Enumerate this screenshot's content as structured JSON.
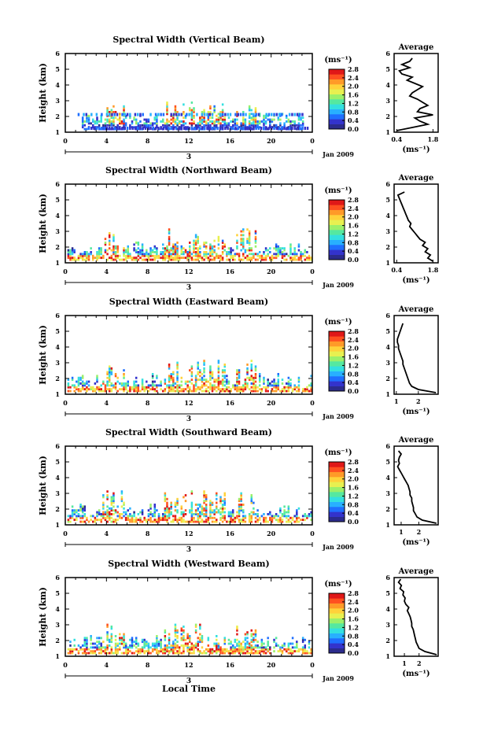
{
  "figure": {
    "xlabel": "Local Time",
    "ylabel": "Height (km)",
    "unit_label": "(ms⁻¹)",
    "avg_title": "Average",
    "date_label": "Jan 2009",
    "day_label": "3"
  },
  "colorbar": {
    "ticks": [
      "2.8",
      "2.4",
      "2.0",
      "1.6",
      "1.2",
      "0.8",
      "0.4",
      "0.0"
    ],
    "colors": [
      "#2b2b8c",
      "#3333cc",
      "#1f6fff",
      "#28b0ff",
      "#33e0e0",
      "#55e8a0",
      "#9cf06a",
      "#e8f050",
      "#ffd23a",
      "#ff9a28",
      "#ff5020",
      "#e01818"
    ]
  },
  "chart_data": [
    {
      "type": "heatmap",
      "title": "Spectral Width (Vertical Beam)",
      "x_ticks": [
        "0",
        "4",
        "8",
        "12",
        "16",
        "20",
        "0"
      ],
      "xlim": [
        0,
        24
      ],
      "y_ticks": [
        "1",
        "2",
        "3",
        "4",
        "5",
        "6"
      ],
      "ylim": [
        1,
        6
      ],
      "clim": [
        0.0,
        2.8
      ],
      "profile": {
        "title": "Average",
        "xlabel": "(ms⁻¹)",
        "x_ticks": [
          "0.4",
          "1.8"
        ],
        "xlim": [
          0.3,
          2.0
        ],
        "height": [
          1.1,
          1.3,
          1.5,
          1.7,
          1.9,
          2.1,
          2.3,
          2.5,
          2.7,
          2.9,
          3.1,
          3.3,
          3.5,
          3.7,
          3.9,
          4.1,
          4.3,
          4.5,
          4.7,
          4.9,
          5.1,
          5.3,
          5.5,
          5.7
        ],
        "width": [
          0.4,
          1.0,
          1.6,
          1.3,
          1.1,
          1.8,
          1.2,
          1.3,
          1.6,
          1.4,
          1.2,
          0.9,
          1.0,
          1.2,
          1.4,
          1.1,
          0.8,
          1.0,
          0.6,
          0.5,
          0.9,
          0.6,
          0.9,
          1.0
        ]
      }
    },
    {
      "type": "heatmap",
      "title": "Spectral Width (Northward Beam)",
      "x_ticks": [
        "0",
        "4",
        "8",
        "12",
        "16",
        "20",
        "0"
      ],
      "xlim": [
        0,
        24
      ],
      "y_ticks": [
        "1",
        "2",
        "3",
        "4",
        "5",
        "6"
      ],
      "ylim": [
        1,
        6
      ],
      "clim": [
        0.0,
        2.8
      ],
      "profile": {
        "title": "Average",
        "xlabel": "(ms⁻¹)",
        "x_ticks": [
          "0.4",
          "1.8"
        ],
        "xlim": [
          0.3,
          2.0
        ],
        "height": [
          1.1,
          1.3,
          1.5,
          1.7,
          1.9,
          2.1,
          2.3,
          2.5,
          2.7,
          2.9,
          3.1,
          3.3,
          3.5,
          3.7,
          3.9,
          4.1,
          4.3,
          4.5,
          4.7,
          4.9,
          5.1,
          5.3,
          5.5
        ],
        "width": [
          1.8,
          1.6,
          1.7,
          1.5,
          1.6,
          1.4,
          1.5,
          1.3,
          1.2,
          1.1,
          1.0,
          0.9,
          0.95,
          0.85,
          0.8,
          0.75,
          0.7,
          0.65,
          0.6,
          0.55,
          0.5,
          0.45,
          0.7
        ]
      }
    },
    {
      "type": "heatmap",
      "title": "Spectral Width (Eastward Beam)",
      "x_ticks": [
        "0",
        "4",
        "8",
        "12",
        "16",
        "20",
        "0"
      ],
      "xlim": [
        0,
        24
      ],
      "y_ticks": [
        "1",
        "2",
        "3",
        "4",
        "5",
        "6"
      ],
      "ylim": [
        1,
        6
      ],
      "clim": [
        0.0,
        2.8
      ],
      "profile": {
        "title": "Average",
        "xlabel": "(ms⁻¹)",
        "x_ticks": [
          "1",
          "2"
        ],
        "xlim": [
          0.9,
          2.9
        ],
        "height": [
          1.1,
          1.3,
          1.5,
          1.7,
          1.9,
          2.1,
          2.3,
          2.5,
          2.7,
          2.9,
          3.1,
          3.3,
          3.5,
          3.7,
          3.9,
          4.1,
          4.3,
          4.5,
          4.7,
          4.9,
          5.1,
          5.3,
          5.5
        ],
        "width": [
          2.8,
          2.0,
          1.7,
          1.6,
          1.55,
          1.5,
          1.45,
          1.4,
          1.35,
          1.3,
          1.3,
          1.25,
          1.2,
          1.15,
          1.1,
          1.1,
          1.05,
          1.05,
          1.1,
          1.15,
          1.2,
          1.25,
          1.3
        ]
      }
    },
    {
      "type": "heatmap",
      "title": "Spectral Width (Southward Beam)",
      "x_ticks": [
        "0",
        "4",
        "8",
        "12",
        "16",
        "20",
        "0"
      ],
      "xlim": [
        0,
        24
      ],
      "y_ticks": [
        "1",
        "2",
        "3",
        "4",
        "5",
        "6"
      ],
      "ylim": [
        1,
        6
      ],
      "clim": [
        0.0,
        2.8
      ],
      "profile": {
        "title": "Average",
        "xlabel": "(ms⁻¹)",
        "x_ticks": [
          "1",
          "2"
        ],
        "xlim": [
          0.6,
          3.1
        ],
        "height": [
          1.1,
          1.3,
          1.5,
          1.7,
          1.9,
          2.1,
          2.3,
          2.5,
          2.7,
          2.9,
          3.1,
          3.3,
          3.5,
          3.7,
          3.9,
          4.1,
          4.3,
          4.5,
          4.7,
          4.9,
          5.1,
          5.3,
          5.5,
          5.7
        ],
        "width": [
          3.0,
          2.2,
          1.9,
          1.8,
          1.7,
          1.7,
          1.65,
          1.6,
          1.6,
          1.5,
          1.5,
          1.45,
          1.4,
          1.3,
          1.2,
          1.1,
          1.0,
          0.9,
          0.8,
          0.9,
          0.85,
          0.9,
          1.0,
          0.85
        ]
      }
    },
    {
      "type": "heatmap",
      "title": "Spectral Width (Westward Beam)",
      "x_ticks": [
        "0",
        "4",
        "8",
        "12",
        "16",
        "20",
        "0"
      ],
      "xlim": [
        0,
        24
      ],
      "y_ticks": [
        "1",
        "2",
        "3",
        "4",
        "5",
        "6"
      ],
      "ylim": [
        1,
        6
      ],
      "clim": [
        0.0,
        2.8
      ],
      "profile": {
        "title": "Average",
        "xlabel": "(ms⁻¹)",
        "x_ticks": [
          "1",
          "2"
        ],
        "xlim": [
          0.3,
          3.3
        ],
        "height": [
          1.1,
          1.3,
          1.5,
          1.7,
          1.9,
          2.1,
          2.3,
          2.5,
          2.7,
          2.9,
          3.1,
          3.3,
          3.5,
          3.7,
          3.9,
          4.1,
          4.3,
          4.5,
          4.7,
          4.9,
          5.1,
          5.3,
          5.5,
          5.7,
          5.9
        ],
        "width": [
          3.2,
          2.4,
          2.0,
          1.9,
          1.8,
          1.75,
          1.7,
          1.65,
          1.6,
          1.5,
          1.5,
          1.45,
          1.4,
          1.3,
          1.2,
          1.3,
          1.1,
          1.0,
          1.05,
          0.9,
          0.95,
          0.7,
          0.8,
          0.6,
          0.75
        ]
      }
    }
  ]
}
